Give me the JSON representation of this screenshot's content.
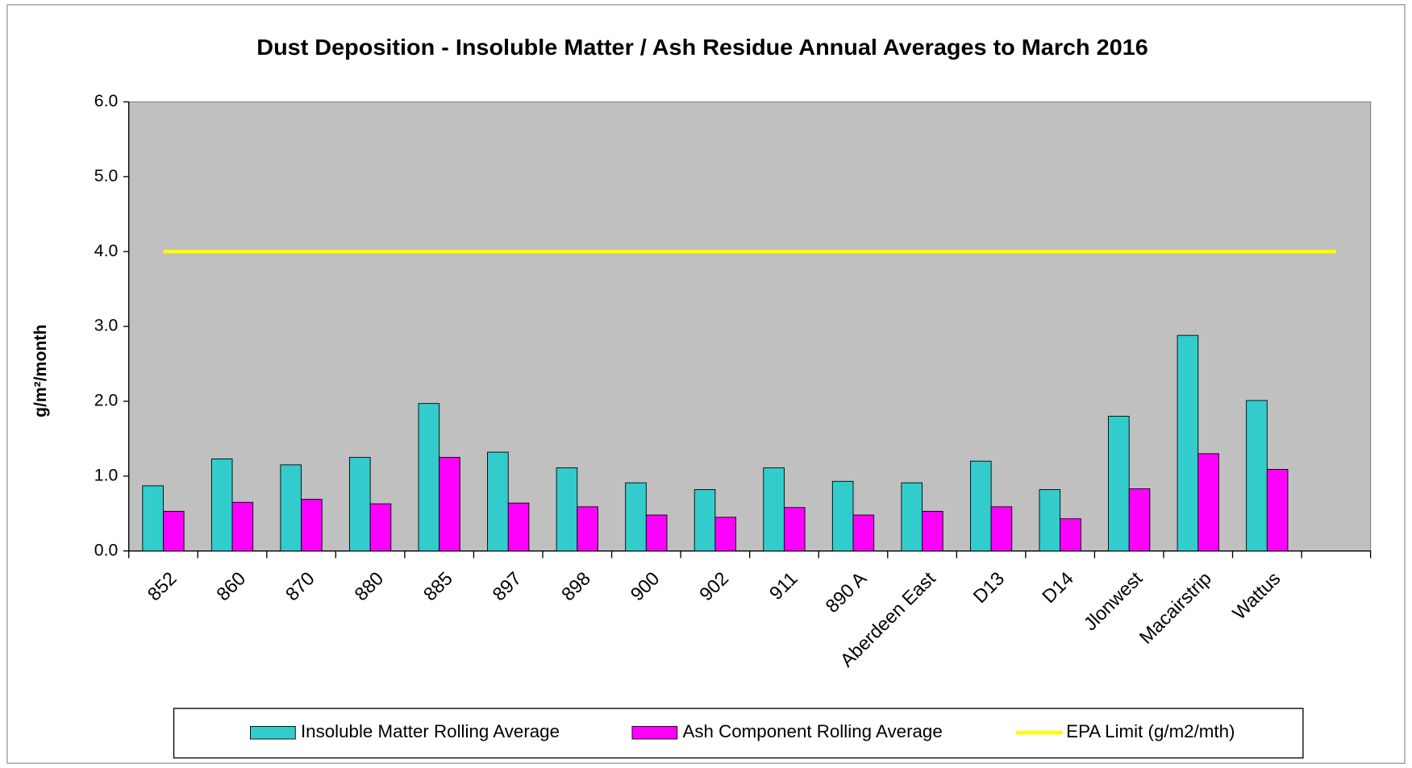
{
  "chart_data": {
    "type": "bar",
    "title": "Dust Deposition - Insoluble Matter / Ash Residue Annual Averages to  March 2016",
    "y_label": "g/m²/month",
    "categories": [
      "852",
      "860",
      "870",
      "880",
      "885",
      "897",
      "898",
      "900",
      "902",
      "911",
      "890 A",
      "Aberdeen East",
      "D13",
      "D14",
      "Jlonwest",
      "Macairstrip",
      "Wattus",
      null
    ],
    "series": [
      {
        "name": "Insoluble Matter Rolling Average",
        "type": "bar",
        "color": "#33cccc",
        "values": [
          0.87,
          1.23,
          1.15,
          1.25,
          1.97,
          1.32,
          1.11,
          0.91,
          0.82,
          1.11,
          0.93,
          0.91,
          1.2,
          0.82,
          1.8,
          2.88,
          2.01,
          null
        ]
      },
      {
        "name": "Ash Component Rolling Average",
        "type": "bar",
        "color": "#ff00ff",
        "values": [
          0.53,
          0.65,
          0.69,
          0.63,
          1.25,
          0.64,
          0.59,
          0.48,
          0.45,
          0.58,
          0.48,
          0.53,
          0.59,
          0.43,
          0.83,
          1.3,
          1.09,
          null
        ]
      },
      {
        "name": "EPA Limit (g/m2/mth)",
        "type": "line",
        "color": "#ffff00",
        "values": [
          4.0,
          4.0,
          4.0,
          4.0,
          4.0,
          4.0,
          4.0,
          4.0,
          4.0,
          4.0,
          4.0,
          4.0,
          4.0,
          4.0,
          4.0,
          4.0,
          4.0,
          4.0
        ]
      }
    ],
    "ylim": [
      0,
      6
    ],
    "yticks": [
      {
        "value": 0,
        "label": "0.0"
      },
      {
        "value": 1,
        "label": "1.0"
      },
      {
        "value": 2,
        "label": "2.0"
      },
      {
        "value": 3,
        "label": "3.0"
      },
      {
        "value": 4,
        "label": "4.0"
      },
      {
        "value": 5,
        "label": "5.0"
      },
      {
        "value": 6,
        "label": "6.0"
      }
    ],
    "plot_background": "#c0c0c0",
    "legend": "bottom"
  }
}
